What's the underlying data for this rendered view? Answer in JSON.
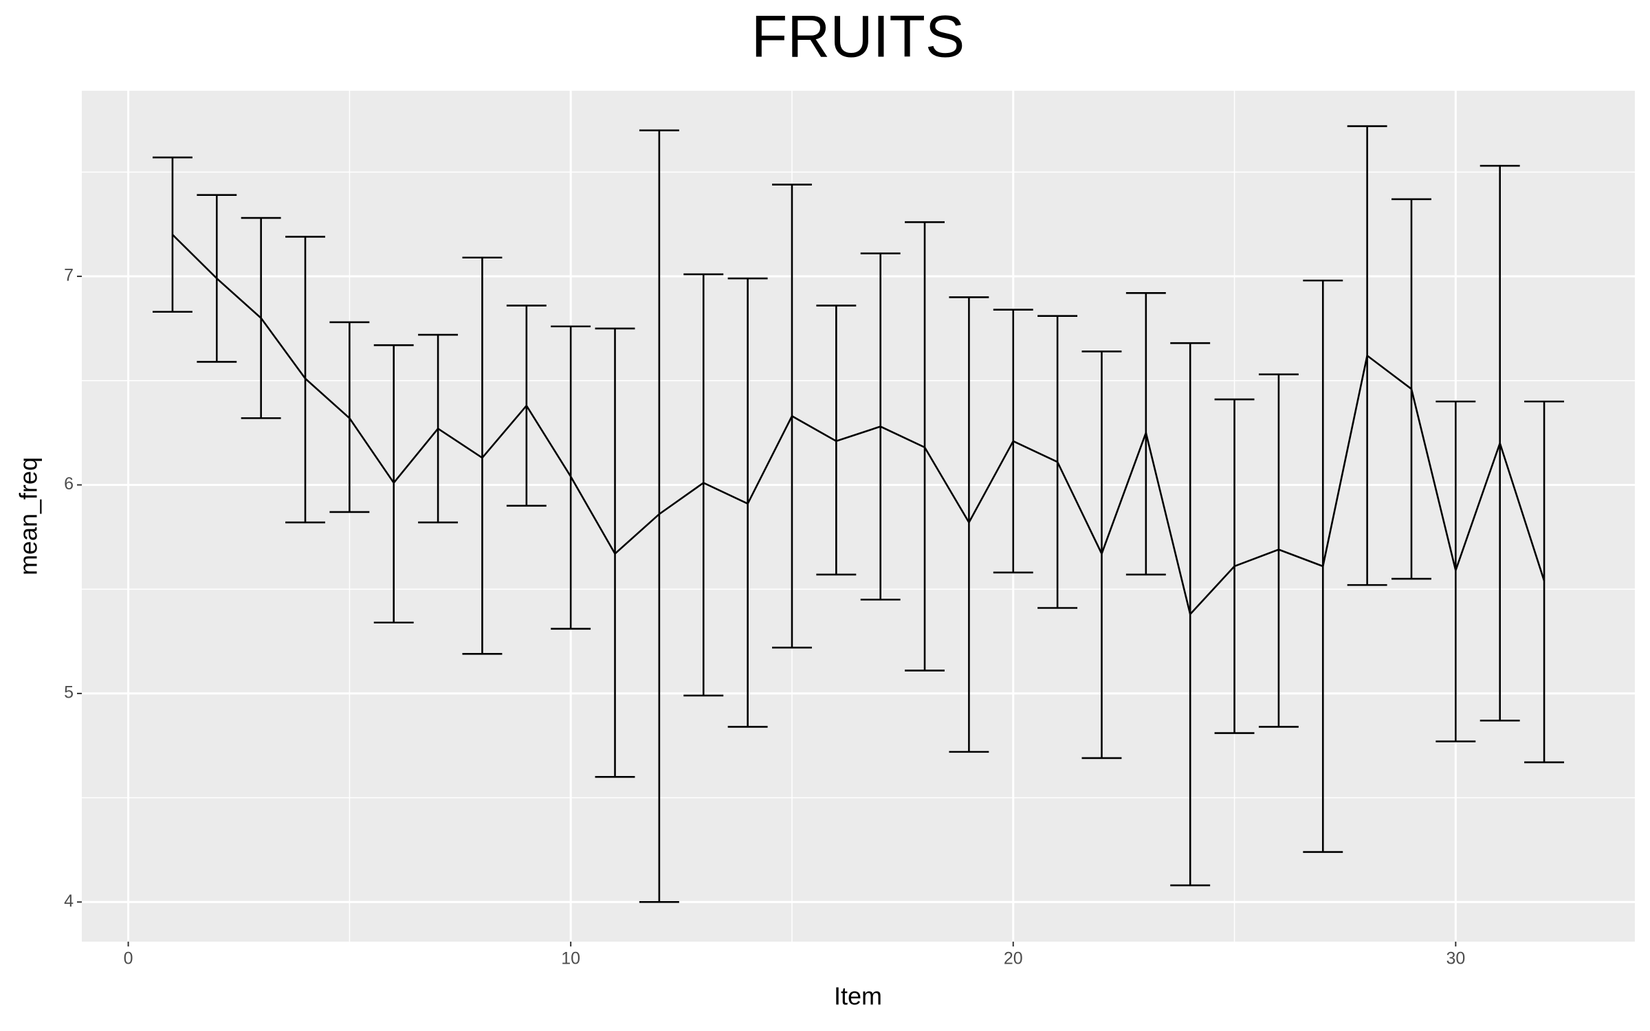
{
  "chart_data": {
    "type": "errorbar-line",
    "title": "FRUITS",
    "x_label": "Item",
    "y_label": "mean_freq",
    "x": [
      1,
      2,
      3,
      4,
      5,
      6,
      7,
      8,
      9,
      10,
      11,
      12,
      13,
      14,
      15,
      16,
      17,
      18,
      19,
      20,
      21,
      22,
      23,
      24,
      25,
      26,
      27,
      28,
      29,
      30,
      31,
      32
    ],
    "series": [
      {
        "color": "#000000",
        "values": [
          7.2,
          6.99,
          6.8,
          6.51,
          6.32,
          6.01,
          6.27,
          6.13,
          6.38,
          6.04,
          5.67,
          5.86,
          6.01,
          5.91,
          6.33,
          6.21,
          6.28,
          6.18,
          5.82,
          6.21,
          6.11,
          5.67,
          6.25,
          5.38,
          5.61,
          5.69,
          5.61,
          6.62,
          6.46,
          5.59,
          6.2,
          5.54
        ],
        "lower": [
          6.83,
          6.59,
          6.32,
          5.82,
          5.87,
          5.34,
          5.82,
          5.19,
          5.9,
          5.31,
          4.6,
          4.0,
          4.99,
          4.84,
          5.22,
          5.57,
          5.45,
          5.11,
          4.72,
          5.58,
          5.41,
          4.69,
          5.57,
          4.08,
          4.81,
          4.84,
          4.24,
          5.52,
          5.55,
          4.77,
          4.87,
          4.67
        ],
        "upper": [
          7.57,
          7.39,
          7.28,
          7.19,
          6.78,
          6.67,
          6.72,
          7.09,
          6.86,
          6.76,
          6.75,
          7.7,
          7.01,
          6.99,
          7.44,
          6.86,
          7.11,
          7.26,
          6.9,
          6.84,
          6.81,
          6.64,
          6.92,
          6.68,
          6.41,
          6.53,
          6.98,
          7.72,
          7.37,
          6.4,
          7.53,
          6.4
        ]
      }
    ],
    "xlim": [
      -1.05,
      34.05
    ],
    "ylim": [
      3.81,
      7.89
    ],
    "xticks": [
      0,
      10,
      20,
      30
    ],
    "yticks": [
      4,
      5,
      6,
      7
    ],
    "x_minor_ticks": [
      5,
      15,
      25
    ],
    "y_minor_ticks": [
      4.5,
      5.5,
      6.5,
      7.5
    ],
    "grid": true
  }
}
